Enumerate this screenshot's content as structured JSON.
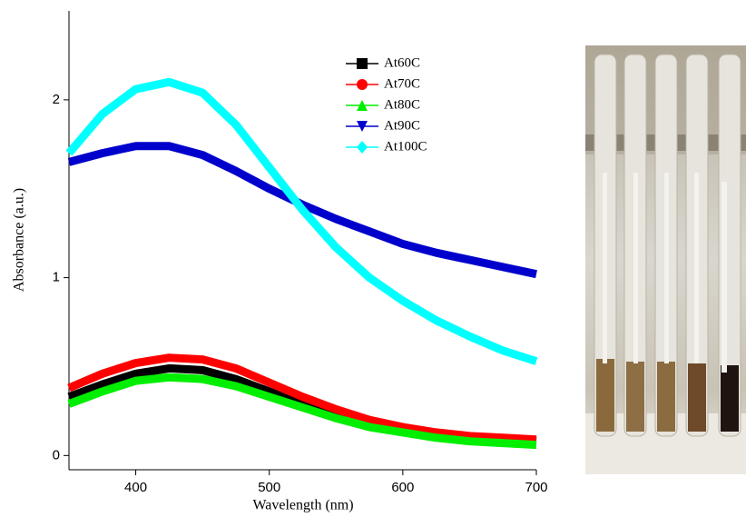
{
  "chart_data": {
    "type": "line",
    "xlabel": "Wavelength (nm)",
    "ylabel": "Absorbance (a.u.)",
    "x": [
      350,
      375,
      400,
      425,
      450,
      475,
      500,
      525,
      550,
      575,
      600,
      625,
      650,
      675,
      700
    ],
    "series": [
      {
        "name": "At60C",
        "color": "#000000",
        "values": [
          0.33,
          0.4,
          0.46,
          0.49,
          0.48,
          0.43,
          0.36,
          0.29,
          0.23,
          0.18,
          0.14,
          0.12,
          0.1,
          0.09,
          0.08
        ]
      },
      {
        "name": "At70C",
        "color": "#ff0000",
        "values": [
          0.38,
          0.46,
          0.52,
          0.55,
          0.54,
          0.49,
          0.41,
          0.33,
          0.26,
          0.2,
          0.16,
          0.13,
          0.11,
          0.1,
          0.09
        ]
      },
      {
        "name": "At80C",
        "color": "#00ee00",
        "values": [
          0.29,
          0.36,
          0.42,
          0.44,
          0.43,
          0.39,
          0.33,
          0.27,
          0.21,
          0.16,
          0.13,
          0.1,
          0.08,
          0.07,
          0.06
        ]
      },
      {
        "name": "At90C",
        "color": "#0000cc",
        "values": [
          1.65,
          1.7,
          1.74,
          1.74,
          1.69,
          1.6,
          1.5,
          1.41,
          1.33,
          1.26,
          1.19,
          1.14,
          1.1,
          1.06,
          1.02
        ]
      },
      {
        "name": "At100C",
        "color": "#00ffff",
        "values": [
          1.7,
          1.92,
          2.06,
          2.1,
          2.04,
          1.86,
          1.62,
          1.38,
          1.17,
          1.0,
          0.87,
          0.76,
          0.67,
          0.59,
          0.53
        ]
      }
    ],
    "xlim": [
      350,
      700
    ],
    "xticks": [
      400,
      500,
      600,
      700
    ],
    "ylim": [
      -0.08,
      2.5
    ],
    "yticks": [
      0,
      1,
      2
    ],
    "legend": "upper right",
    "markers": [
      "square",
      "circle",
      "triangle-up",
      "triangle-down",
      "diamond"
    ]
  }
}
